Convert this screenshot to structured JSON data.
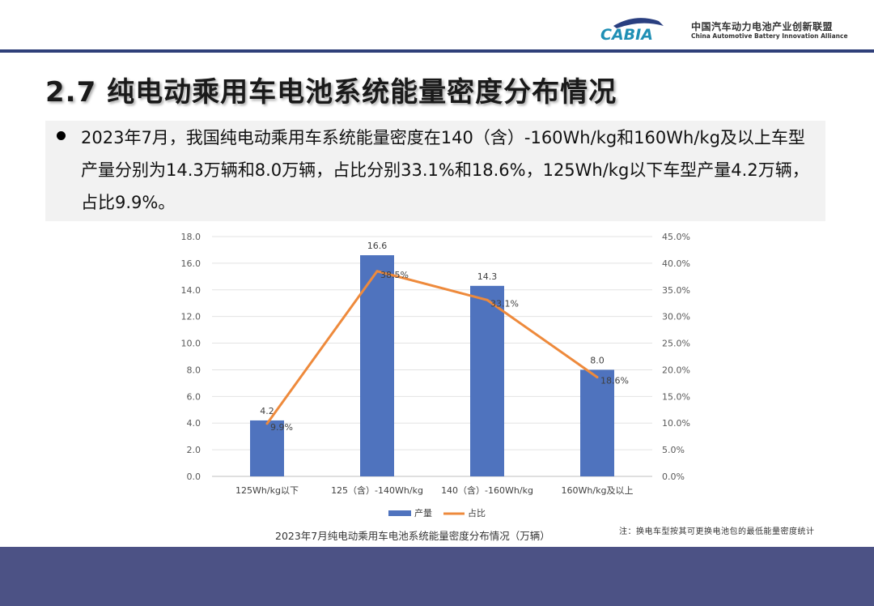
{
  "header": {
    "logo_text": "CABIA",
    "org_name_cn": "中国汽车动力电池产业创新联盟",
    "org_name_en": "China Automotive Battery Innovation Alliance"
  },
  "slide": {
    "title": "2.7 纯电动乘用车电池系统能量密度分布情况",
    "note": "2023年7月，我国纯电动乘用车系统能量密度在140（含）-160Wh/kg和160Wh/kg及以上车型产量分别为14.3万辆和8.0万辆，占比分别33.1%和18.6%，125Wh/kg以下车型产量4.2万辆，占比9.9%。",
    "footnote": "注：换电车型按其可更换电池包的最低能量密度统计"
  },
  "colors": {
    "bar": "#4f73be",
    "line": "#ee8a3c",
    "footer": "#4c5285",
    "header_line": "#2f3f79"
  },
  "chart_data": {
    "type": "bar",
    "title": "2023年7月纯电动乘用车电池系统能量密度分布情况（万辆）",
    "categories": [
      "125Wh/kg以下",
      "125（含）-140Wh/kg",
      "140（含）-160Wh/kg",
      "160Wh/kg及以上"
    ],
    "series": [
      {
        "name": "产量",
        "type": "bar",
        "axis": "left",
        "values": [
          4.2,
          16.6,
          14.3,
          8.0
        ],
        "labels": [
          "4.2",
          "16.6",
          "14.3",
          "8.0"
        ]
      },
      {
        "name": "占比",
        "type": "line",
        "axis": "right",
        "values": [
          9.9,
          38.5,
          33.1,
          18.6
        ],
        "labels": [
          "9.9%",
          "38.5%",
          "33.1%",
          "18.6%"
        ]
      }
    ],
    "ylim_left": [
      0,
      18
    ],
    "yticks_left": [
      "0.0",
      "2.0",
      "4.0",
      "6.0",
      "8.0",
      "10.0",
      "12.0",
      "14.0",
      "16.0",
      "18.0"
    ],
    "ylim_right": [
      0,
      45
    ],
    "yticks_right": [
      "0.0%",
      "5.0%",
      "10.0%",
      "15.0%",
      "20.0%",
      "25.0%",
      "30.0%",
      "35.0%",
      "40.0%",
      "45.0%"
    ],
    "grid": true,
    "legend": "bottom-center"
  }
}
